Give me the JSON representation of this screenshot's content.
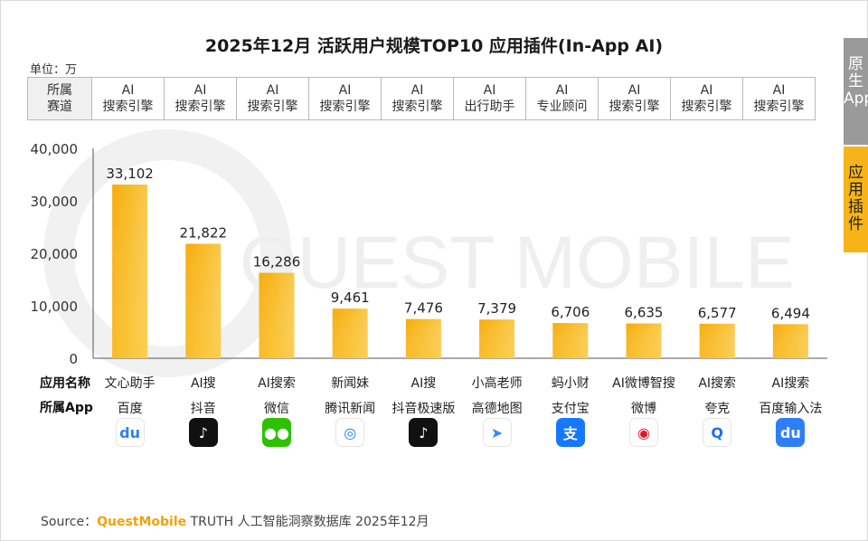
{
  "title": "2025年12月 活跃用户规模TOP10 应用插件(In-App AI)",
  "unit_label": "单位：万",
  "side_tabs": {
    "native": "原生App",
    "plugin": "应用插件"
  },
  "category_row": {
    "header": [
      "所属",
      "赛道"
    ],
    "cells": [
      [
        "AI",
        "搜索引擎"
      ],
      [
        "AI",
        "搜索引擎"
      ],
      [
        "AI",
        "搜索引擎"
      ],
      [
        "AI",
        "搜索引擎"
      ],
      [
        "AI",
        "搜索引擎"
      ],
      [
        "AI",
        "出行助手"
      ],
      [
        "AI",
        "专业顾问"
      ],
      [
        "AI",
        "搜索引擎"
      ],
      [
        "AI",
        "搜索引擎"
      ],
      [
        "AI",
        "搜索引擎"
      ]
    ]
  },
  "row_labels": {
    "app_name": "应用名称",
    "parent_app": "所属App"
  },
  "apps": [
    {
      "name": "文心助手",
      "parent": "百度",
      "icon": "baidu-icon",
      "color": "#ffffff"
    },
    {
      "name": "AI搜",
      "parent": "抖音",
      "icon": "douyin-icon",
      "color": "#111111"
    },
    {
      "name": "AI搜索",
      "parent": "微信",
      "icon": "wechat-icon",
      "color": "#2dc100"
    },
    {
      "name": "新闻妹",
      "parent": "腾讯新闻",
      "icon": "tencent-news-icon",
      "color": "#ffffff"
    },
    {
      "name": "AI搜",
      "parent": "抖音极速版",
      "icon": "douyin-lite-icon",
      "color": "#111111"
    },
    {
      "name": "小高老师",
      "parent": "高德地图",
      "icon": "amap-icon",
      "color": "#ffffff"
    },
    {
      "name": "蚂小财",
      "parent": "支付宝",
      "icon": "alipay-icon",
      "color": "#1677ff"
    },
    {
      "name": "AI微博智搜",
      "parent": "微博",
      "icon": "weibo-icon",
      "color": "#ffffff"
    },
    {
      "name": "AI搜索",
      "parent": "夸克",
      "icon": "quark-icon",
      "color": "#ffffff"
    },
    {
      "name": "AI搜索",
      "parent": "百度输入法",
      "icon": "baidu-input-icon",
      "color": "#2e7ff7"
    }
  ],
  "chart_data": {
    "type": "bar",
    "title": "2025年12月 活跃用户规模TOP10 应用插件(In-App AI)",
    "ylabel": "单位：万",
    "categories": [
      "文心助手",
      "AI搜",
      "AI搜索",
      "新闻妹",
      "AI搜",
      "小高老师",
      "蚂小财",
      "AI微博智搜",
      "AI搜索",
      "AI搜索"
    ],
    "values": [
      33102,
      21822,
      16286,
      9461,
      7476,
      7379,
      6706,
      6635,
      6577,
      6494
    ],
    "value_labels": [
      "33,102",
      "21,822",
      "16,286",
      "9,461",
      "7,476",
      "7,379",
      "6,706",
      "6,635",
      "6,577",
      "6,494"
    ],
    "ylim": [
      0,
      40000
    ],
    "yticks": [
      "0",
      "10,000",
      "20,000",
      "30,000",
      "40,000"
    ],
    "grid": false,
    "bar_color": "#f8b617"
  },
  "watermark": "QUEST MOBILE",
  "source": {
    "prefix": "Source：",
    "brand": "QuestMobile",
    "rest": " TRUTH 人工智能洞察数据库 2025年12月"
  }
}
